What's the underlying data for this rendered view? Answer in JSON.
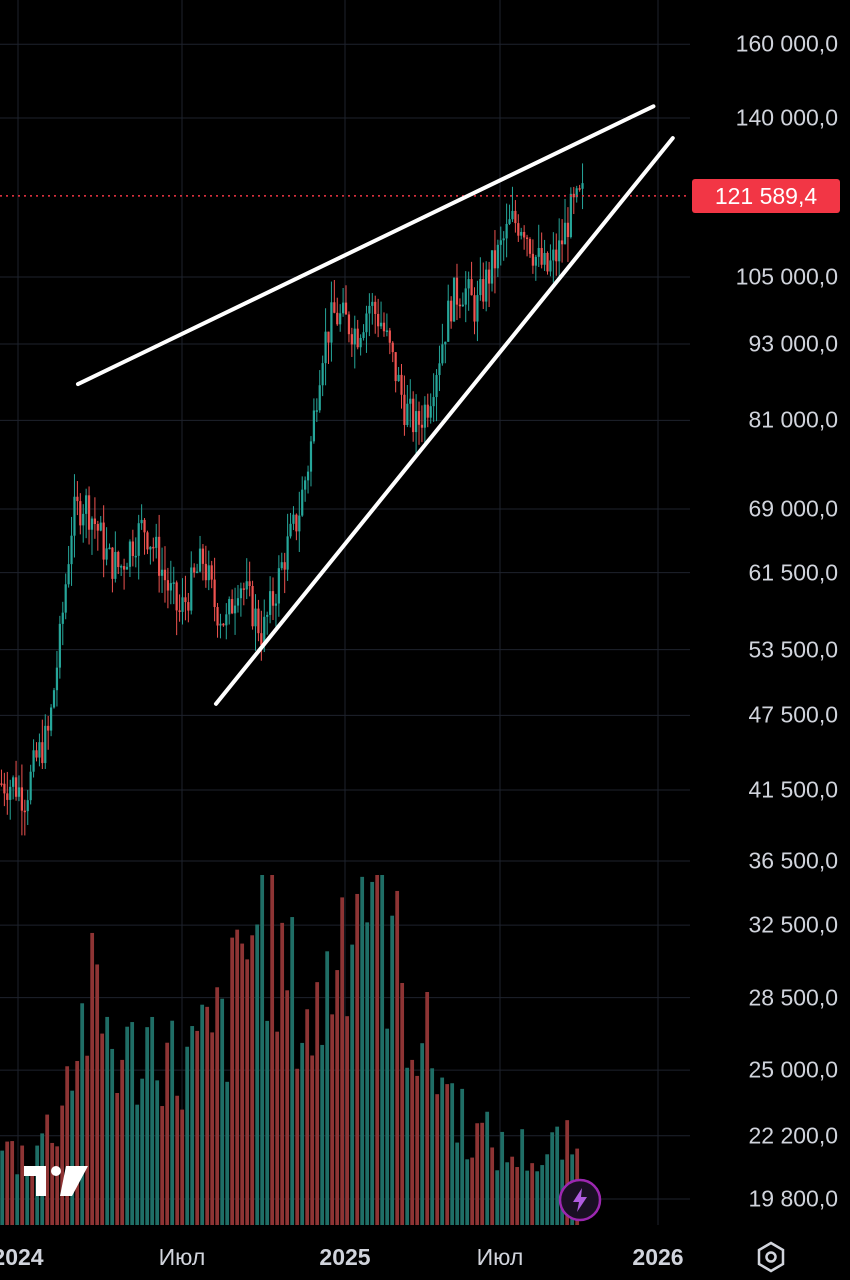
{
  "chart_data": {
    "type": "candlestick",
    "title": "",
    "price_scale_labels": [
      "160 000,0",
      "140 000,0",
      "105 000,0",
      "93 000,0",
      "81 000,0",
      "69 000,0",
      "61 500,0",
      "53 500,0",
      "47 500,0",
      "41 500,0",
      "36 500,0",
      "32 500,0",
      "28 500,0",
      "25 000,0",
      "22 200,0",
      "19 800,0"
    ],
    "time_scale_labels": [
      {
        "text": "2024",
        "bold": true
      },
      {
        "text": "Июл",
        "bold": false
      },
      {
        "text": "2025",
        "bold": true
      },
      {
        "text": "Июл",
        "bold": false
      },
      {
        "text": "2026",
        "bold": true
      }
    ],
    "last_price": "121 589,4",
    "last_price_value": 121589.4,
    "y_scale": "log",
    "grid": true,
    "colors": {
      "up": "#26a69a",
      "down": "#ef5350",
      "last_price": "#f23645",
      "trendline": "#ffffff",
      "grid": "#1e222d",
      "volume_up": "#1f6e66",
      "volume_down": "#8e3434"
    },
    "anchors": [
      42000,
      42000,
      41000,
      44000,
      46000,
      55000,
      68000,
      70000,
      67000,
      63000,
      62000,
      65000,
      67000,
      64000,
      60000,
      57000,
      60000,
      63000,
      58000,
      56000,
      61000,
      58000,
      55000,
      59000,
      64000,
      68000,
      76000,
      92000,
      98000,
      97000,
      95000,
      100000,
      97000,
      90000,
      83000,
      80000,
      84000,
      92000,
      101000,
      103000,
      99000,
      105000,
      110000,
      116000,
      116000,
      109000,
      106000,
      110000,
      118000,
      121500
    ],
    "volume_pattern": [
      1,
      0.9,
      1.1,
      1.3,
      2.2,
      2.9,
      2.6,
      2.1,
      2.3,
      2.5,
      2.0,
      2.2,
      2.4,
      2.7,
      3.6,
      4.3,
      3.3,
      2.9,
      2.6,
      3.5,
      4.4,
      4.8,
      3.9,
      3.1,
      2.4,
      2.1,
      1.6,
      1.2,
      1.1,
      0.9,
      1.0,
      0.8,
      1.1,
      0.9
    ],
    "trendlines": [
      {
        "name": "upper",
        "from": {
          "t": 0.113,
          "price": 86500
        },
        "to": {
          "t": 0.947,
          "price": 143000
        }
      },
      {
        "name": "lower",
        "from": {
          "t": 0.313,
          "price": 48500
        },
        "to": {
          "t": 0.975,
          "price": 135000
        }
      }
    ]
  },
  "branding": {
    "logo": "TV"
  },
  "icons": {
    "settings": "hexagon-settings-icon",
    "lightning": "lightning-icon"
  }
}
